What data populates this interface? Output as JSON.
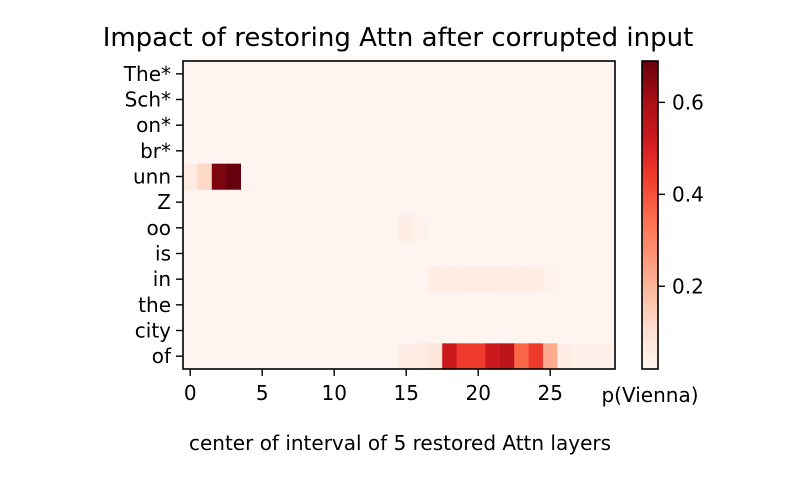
{
  "chart_data": {
    "type": "heatmap",
    "title": "Impact of restoring Attn after corrupted input",
    "xlabel": "center of interval of 5 restored Attn layers",
    "colorbar_label": "p(Vienna)",
    "colormap": "Reds",
    "rows": [
      "The*",
      "Sch*",
      "on*",
      "br*",
      "unn",
      "Z",
      "oo",
      "is",
      "in",
      "the",
      "city",
      "of"
    ],
    "x_ticks": [
      0,
      5,
      10,
      15,
      20,
      25
    ],
    "x_range": [
      0,
      29
    ],
    "colorbar_ticks": [
      "0.2",
      "0.4",
      "0.6"
    ],
    "colorbar_tick_values": [
      0.2,
      0.4,
      0.6
    ],
    "value_range": [
      0.02,
      0.69
    ],
    "grid": false,
    "cells": [
      {
        "row": 4,
        "col": 0,
        "value": 0.06
      },
      {
        "row": 4,
        "col": 1,
        "value": 0.12
      },
      {
        "row": 4,
        "col": 2,
        "value": 0.66
      },
      {
        "row": 4,
        "col": 3,
        "value": 0.69
      },
      {
        "row": 6,
        "col": 15,
        "value": 0.05
      },
      {
        "row": 6,
        "col": 16,
        "value": 0.03
      },
      {
        "row": 8,
        "col": 17,
        "value": 0.05
      },
      {
        "row": 8,
        "col": 18,
        "value": 0.05
      },
      {
        "row": 8,
        "col": 19,
        "value": 0.06
      },
      {
        "row": 8,
        "col": 20,
        "value": 0.06
      },
      {
        "row": 8,
        "col": 21,
        "value": 0.06
      },
      {
        "row": 8,
        "col": 22,
        "value": 0.05
      },
      {
        "row": 8,
        "col": 23,
        "value": 0.05
      },
      {
        "row": 8,
        "col": 24,
        "value": 0.05
      },
      {
        "row": 8,
        "col": 25,
        "value": 0.03
      },
      {
        "row": 11,
        "col": 15,
        "value": 0.05
      },
      {
        "row": 11,
        "col": 16,
        "value": 0.06
      },
      {
        "row": 11,
        "col": 17,
        "value": 0.08
      },
      {
        "row": 11,
        "col": 18,
        "value": 0.52
      },
      {
        "row": 11,
        "col": 19,
        "value": 0.44
      },
      {
        "row": 11,
        "col": 20,
        "value": 0.44
      },
      {
        "row": 11,
        "col": 21,
        "value": 0.52
      },
      {
        "row": 11,
        "col": 22,
        "value": 0.56
      },
      {
        "row": 11,
        "col": 23,
        "value": 0.36
      },
      {
        "row": 11,
        "col": 24,
        "value": 0.44
      },
      {
        "row": 11,
        "col": 25,
        "value": 0.22
      },
      {
        "row": 11,
        "col": 26,
        "value": 0.05
      },
      {
        "row": 11,
        "col": 27,
        "value": 0.04
      },
      {
        "row": 11,
        "col": 28,
        "value": 0.04
      },
      {
        "row": 11,
        "col": 29,
        "value": 0.04
      }
    ]
  }
}
